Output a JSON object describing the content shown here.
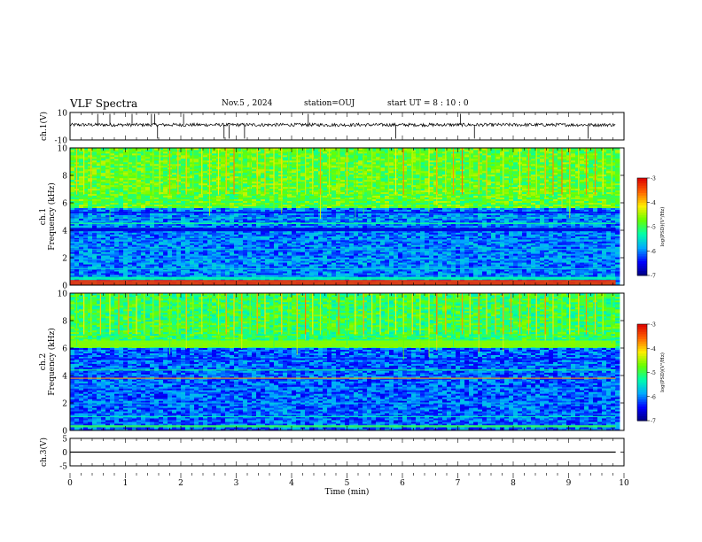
{
  "header": {
    "title": "VLF Spectra",
    "date": "Nov.5 , 2024",
    "station": "station=OUJ",
    "start_ut": "start UT = 8 : 10 : 0"
  },
  "chart_data": [
    {
      "type": "line",
      "panel": "ch1-waveform",
      "ylabel": "ch.1(V)",
      "ylim": [
        -10,
        10
      ],
      "yticks": [
        "10",
        "-10"
      ],
      "x_range_min": [
        0,
        9.85
      ],
      "baseline": 1,
      "noise_amplitude": 1.2,
      "spikes_min": [
        0.5,
        0.72,
        1.12,
        1.47,
        1.53,
        1.58,
        2.05,
        2.78,
        2.87,
        3.15,
        4.3,
        5.88,
        7.05,
        7.3,
        9.35
      ]
    },
    {
      "type": "heatmap",
      "panel": "ch1-spectrogram",
      "ylabel": "ch.1\nFrequency (kHz)",
      "ylim": [
        0,
        10
      ],
      "yticks": [
        "0",
        "2",
        "4",
        "6",
        "8",
        "10"
      ],
      "colorbar": {
        "label": "log(PSD)(V²/Hz)",
        "range": [
          -7,
          -3
        ],
        "ticks": [
          "-3",
          "-4",
          "-5",
          "-6",
          "-7"
        ]
      },
      "colormap": [
        "#00007f",
        "#0000ff",
        "#00aaff",
        "#00ffaa",
        "#66ff00",
        "#ffee00",
        "#ff6600",
        "#dd0000"
      ],
      "bands_khz": [
        {
          "f": 0.2,
          "w": 0.35,
          "v": -3.3
        },
        {
          "f": 0.5,
          "w": 0.2,
          "v": -5.3
        },
        {
          "f": 1.2,
          "w": 0.08,
          "v": -5.6
        },
        {
          "f": 1.9,
          "w": 0.06,
          "v": -5.8
        },
        {
          "f": 2.6,
          "w": 0.06,
          "v": -5.7
        },
        {
          "f": 3.3,
          "w": 0.06,
          "v": -5.9
        },
        {
          "f": 4.05,
          "w": 0.25,
          "v": -6.6
        },
        {
          "f": 4.5,
          "w": 0.1,
          "v": -5.2
        },
        {
          "f": 4.9,
          "w": 0.06,
          "v": -5.5
        },
        {
          "f": 5.3,
          "w": 0.1,
          "v": -6.5
        }
      ],
      "background_low": -6.0,
      "background_high": -4.8,
      "transition_khz": 5.6
    },
    {
      "type": "heatmap",
      "panel": "ch2-spectrogram",
      "ylabel": "ch.2\nFrequency (kHz)",
      "ylim": [
        0,
        10
      ],
      "yticks": [
        "0",
        "2",
        "4",
        "6",
        "8",
        "10"
      ],
      "colorbar": {
        "label": "log(PSD)(V²/Hz)",
        "range": [
          -7,
          -3
        ],
        "ticks": [
          "-3",
          "-4",
          "-5",
          "-6",
          "-7"
        ]
      },
      "colormap": [
        "#00007f",
        "#0000ff",
        "#00aaff",
        "#00ffaa",
        "#66ff00",
        "#ffee00",
        "#ff6600",
        "#dd0000"
      ],
      "bands_khz": [
        {
          "f": 0.3,
          "w": 0.15,
          "v": -5.0
        },
        {
          "f": 1.0,
          "w": 0.08,
          "v": -5.4
        },
        {
          "f": 2.0,
          "w": 0.06,
          "v": -5.7
        },
        {
          "f": 3.1,
          "w": 0.06,
          "v": -5.8
        },
        {
          "f": 3.8,
          "w": 0.08,
          "v": -3.8
        },
        {
          "f": 4.4,
          "w": 0.08,
          "v": -5.2
        },
        {
          "f": 5.2,
          "w": 0.1,
          "v": -6.4
        },
        {
          "f": 6.3,
          "w": 0.5,
          "v": -4.6
        }
      ],
      "background_low": -6.1,
      "background_high": -5.0,
      "transition_khz": 6.0
    },
    {
      "type": "line",
      "panel": "ch3-waveform",
      "ylabel": "ch.3(V)",
      "ylim": [
        -5,
        5
      ],
      "yticks": [
        "5",
        "0",
        "-5"
      ],
      "x_range_min": [
        0,
        9.85
      ],
      "baseline": 0,
      "noise_amplitude": 0.0,
      "spikes_min": []
    }
  ],
  "x_axis": {
    "label": "Time (min)",
    "range": [
      0,
      10
    ],
    "ticks": [
      "0",
      "1",
      "2",
      "3",
      "4",
      "5",
      "6",
      "7",
      "8",
      "9",
      "10"
    ]
  },
  "sferics_min": [
    0.12,
    0.25,
    0.38,
    0.55,
    0.72,
    0.88,
    1.05,
    1.2,
    1.34,
    1.5,
    1.62,
    1.8,
    1.95,
    2.1,
    2.22,
    2.38,
    2.52,
    2.68,
    2.82,
    2.96,
    3.1,
    3.25,
    3.38,
    3.52,
    3.68,
    3.82,
    3.95,
    4.1,
    4.25,
    4.38,
    4.52,
    4.68,
    4.85,
    5.0,
    5.15,
    5.3,
    5.45,
    5.6,
    5.75,
    5.88,
    6.02,
    6.18,
    6.32,
    6.48,
    6.62,
    6.78,
    6.92,
    7.08,
    7.22,
    7.38,
    7.52,
    7.68,
    7.82,
    7.96,
    8.12,
    8.28,
    8.42,
    8.58,
    8.72,
    8.88,
    9.02,
    9.18,
    9.32,
    9.48,
    9.62,
    9.78
  ]
}
